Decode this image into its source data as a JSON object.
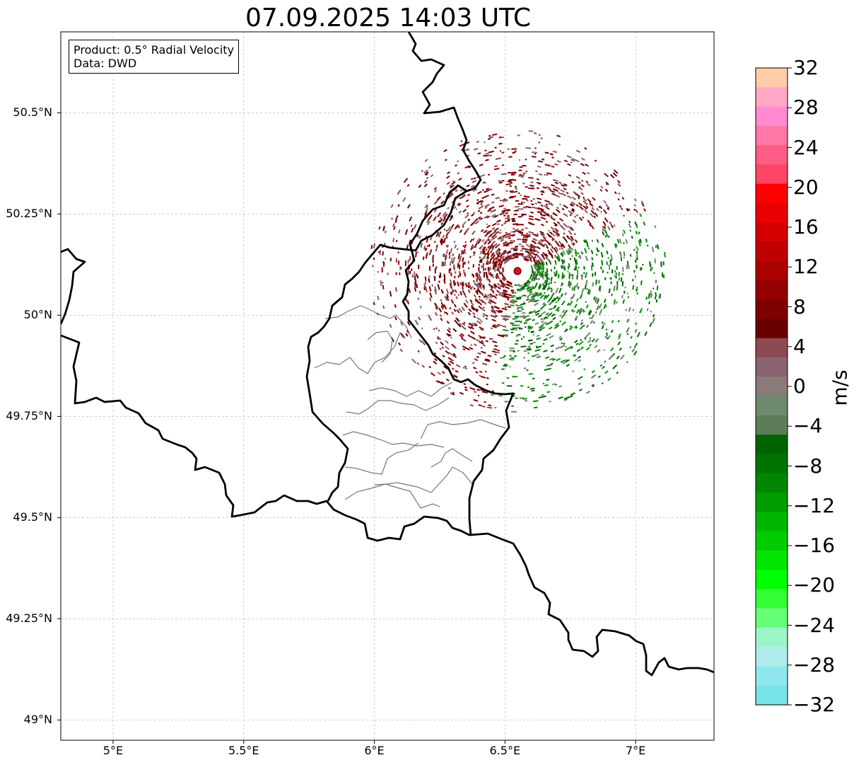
{
  "title": "07.09.2025 14:03 UTC",
  "info": {
    "product": "Product: 0.5° Radial Velocity",
    "data": "Data: DWD"
  },
  "map": {
    "lon_range": [
      4.8,
      7.3
    ],
    "lat_range": [
      48.95,
      50.7
    ],
    "lon_ticks": [
      {
        "value": 5.0,
        "label": "5°E"
      },
      {
        "value": 5.5,
        "label": "5.5°E"
      },
      {
        "value": 6.0,
        "label": "6°E"
      },
      {
        "value": 6.5,
        "label": "6.5°E"
      },
      {
        "value": 7.0,
        "label": "7°E"
      }
    ],
    "lat_ticks": [
      {
        "value": 49.0,
        "label": "49°N"
      },
      {
        "value": 49.25,
        "label": "49.25°N"
      },
      {
        "value": 49.5,
        "label": "49.5°N"
      },
      {
        "value": 49.75,
        "label": "49.75°N"
      },
      {
        "value": 50.0,
        "label": "50°N"
      },
      {
        "value": 50.25,
        "label": "50.25°N"
      },
      {
        "value": 50.5,
        "label": "50.5°N"
      }
    ],
    "gridlines": true,
    "radar_site": {
      "lon": 6.548,
      "lat": 50.109,
      "color": "#ff0000"
    }
  },
  "colorbar": {
    "unit": "m/s",
    "range": [
      -32,
      32
    ],
    "ticks": [
      "32",
      "28",
      "24",
      "20",
      "16",
      "12",
      "8",
      "4",
      "0",
      "−4",
      "−8",
      "−12",
      "−16",
      "−20",
      "−24",
      "−28",
      "−32"
    ],
    "colors_top_to_bottom": [
      "#ffcba8",
      "#ffa8c5",
      "#ff8ad2",
      "#ff78a8",
      "#ff5c88",
      "#ff4566",
      "#ff0000",
      "#ea0000",
      "#d40000",
      "#c00000",
      "#ab0000",
      "#950000",
      "#7e0000",
      "#6a0000",
      "#8c4a50",
      "#8a6470",
      "#8a7a78",
      "#6e8a6e",
      "#5e7c5a",
      "#006400",
      "#007200",
      "#008600",
      "#009c00",
      "#00b400",
      "#00cc00",
      "#00e600",
      "#00ff00",
      "#34ff34",
      "#66ff77",
      "#9df5c7",
      "#b0ecec",
      "#8ee7ec",
      "#77e3e8"
    ]
  }
}
